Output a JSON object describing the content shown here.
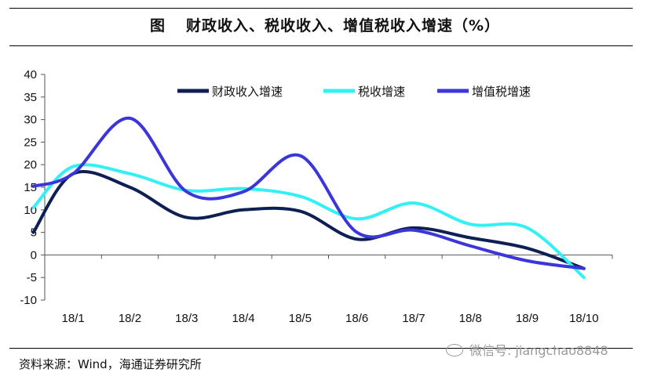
{
  "header": {
    "figure_label": "图",
    "title": "财政收入、税收收入、增值税收入增速（%）"
  },
  "footer": {
    "source": "资料来源：Wind，海通证券研究所",
    "watermark": "微信号: jiangchao8848"
  },
  "chart_data": {
    "type": "line",
    "categories": [
      "18/1",
      "18/2",
      "18/3",
      "18/4",
      "18/5",
      "18/6",
      "18/7",
      "18/8",
      "18/9",
      "18/10"
    ],
    "ylim": [
      -10,
      40
    ],
    "yticks": [
      -10,
      -5,
      0,
      5,
      10,
      15,
      20,
      25,
      30,
      35,
      40
    ],
    "grid": false,
    "legend_position": "top-center",
    "series": [
      {
        "name": "财政收入增速",
        "color": "#0d1f54",
        "x": [
          -0.7,
          0,
          1,
          2,
          3,
          4,
          5,
          6,
          7,
          8,
          9
        ],
        "values": [
          5,
          18,
          15,
          8.3,
          10,
          9.7,
          3.5,
          6,
          3.8,
          1.5,
          -3
        ]
      },
      {
        "name": "税收增速",
        "color": "#33f0f5",
        "x": [
          -0.7,
          0,
          1,
          2,
          3,
          4,
          5,
          6,
          7,
          8,
          9
        ],
        "values": [
          10.5,
          19.6,
          18,
          14.3,
          14.7,
          13,
          8,
          11.5,
          6.8,
          6,
          -5
        ]
      },
      {
        "name": "增值税增速",
        "color": "#3b36d9",
        "x": [
          -0.7,
          0,
          1,
          2,
          3,
          4,
          5,
          6,
          7,
          8,
          9
        ],
        "values": [
          15.2,
          18,
          30.3,
          14,
          14,
          22,
          5,
          5.5,
          2,
          -1.3,
          -3
        ]
      }
    ]
  }
}
